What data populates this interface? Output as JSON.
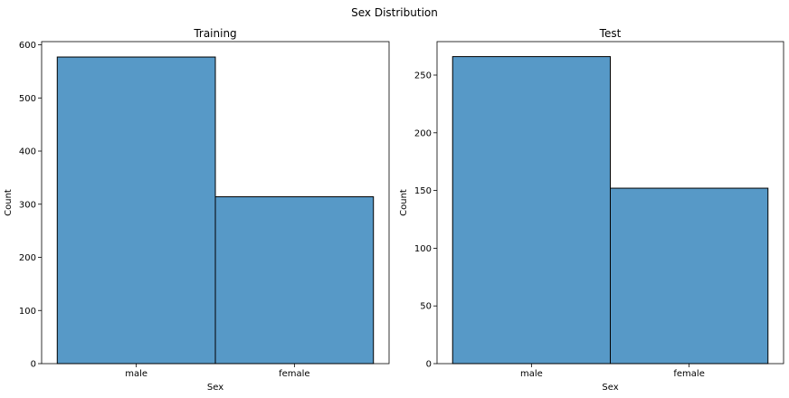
{
  "figure": {
    "suptitle": "Sex Distribution"
  },
  "chart_data": [
    {
      "type": "bar",
      "title": "Training",
      "xlabel": "Sex",
      "ylabel": "Count",
      "categories": [
        "male",
        "female"
      ],
      "values": [
        577,
        314
      ],
      "ylim": [
        0,
        606
      ],
      "yticks": [
        0,
        100,
        200,
        300,
        400,
        500,
        600
      ],
      "grid": false,
      "bar_color": "#5799c7",
      "edge_color": "#000000"
    },
    {
      "type": "bar",
      "title": "Test",
      "xlabel": "Sex",
      "ylabel": "Count",
      "categories": [
        "male",
        "female"
      ],
      "values": [
        266,
        152
      ],
      "ylim": [
        0,
        279
      ],
      "yticks": [
        0,
        50,
        100,
        150,
        200,
        250
      ],
      "grid": false,
      "bar_color": "#5799c7",
      "edge_color": "#000000"
    }
  ]
}
